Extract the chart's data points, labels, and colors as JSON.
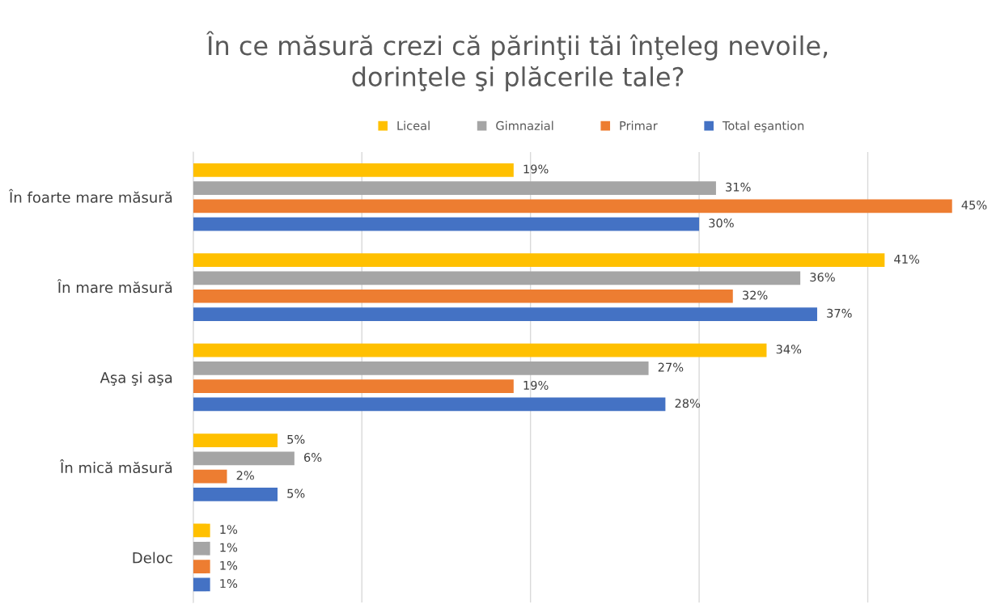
{
  "chart_data": {
    "type": "bar",
    "orientation": "horizontal",
    "title": "În ce măsură crezi că părinţii tăi înţeleg nevoile,\ndorinţele şi plăcerile tale?",
    "categories": [
      "În foarte mare măsură",
      "În mare măsură",
      "Aşa şi aşa",
      "În mică măsură",
      "Deloc"
    ],
    "series": [
      {
        "name": "Liceal",
        "color": "#ffc000",
        "values": [
          19,
          41,
          34,
          5,
          1
        ],
        "value_labels": [
          "19%",
          "41%",
          "34%",
          "5%",
          "1%"
        ]
      },
      {
        "name": "Gimnazial",
        "color": "#a5a5a5",
        "values": [
          31,
          36,
          27,
          6,
          1
        ],
        "value_labels": [
          "31%",
          "36%",
          "27%",
          "6%",
          "1%"
        ]
      },
      {
        "name": "Primar",
        "color": "#ed7d31",
        "values": [
          45,
          32,
          19,
          2,
          1
        ],
        "value_labels": [
          "45%",
          "32%",
          "19%",
          "2%",
          "1%"
        ]
      },
      {
        "name": "Total eşantion",
        "color": "#4472c4",
        "values": [
          30,
          37,
          28,
          5,
          1
        ],
        "value_labels": [
          "30%",
          "37%",
          "28%",
          "5%",
          "1%"
        ]
      }
    ],
    "grid": "x",
    "legend": "top",
    "tick_labels": "y"
  }
}
